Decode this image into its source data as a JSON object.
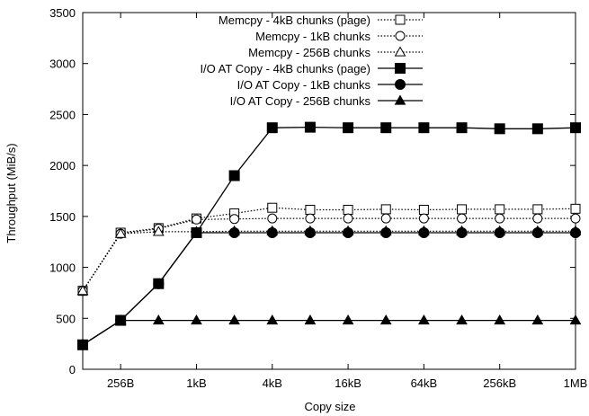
{
  "chart_data": {
    "type": "line",
    "title": "",
    "xlabel": "Copy size",
    "ylabel": "Throughput (MiB/s)",
    "x_scale": "log2",
    "x_unit": "bytes",
    "xlim": [
      128,
      1048576
    ],
    "ylim": [
      0,
      3500
    ],
    "grid": false,
    "legend_position": "top-right",
    "x_ticks": [
      {
        "value": 256,
        "label": "256B"
      },
      {
        "value": 1024,
        "label": "1kB"
      },
      {
        "value": 4096,
        "label": "4kB"
      },
      {
        "value": 16384,
        "label": "16kB"
      },
      {
        "value": 65536,
        "label": "64kB"
      },
      {
        "value": 262144,
        "label": "256kB"
      },
      {
        "value": 1048576,
        "label": "1MB"
      }
    ],
    "y_ticks": [
      0,
      500,
      1000,
      1500,
      2000,
      2500,
      3000,
      3500
    ],
    "x": [
      128,
      256,
      512,
      1024,
      2048,
      4096,
      8192,
      16384,
      32768,
      65536,
      131072,
      262144,
      524288,
      1048576
    ],
    "series": [
      {
        "name": "Memcpy - 4kB chunks (page)",
        "marker": "open-square",
        "line": "dotted",
        "values": [
          770,
          1340,
          1385,
          1480,
          1530,
          1585,
          1565,
          1565,
          1570,
          1565,
          1570,
          1570,
          1570,
          1575
        ]
      },
      {
        "name": "Memcpy - 1kB chunks",
        "marker": "open-circle",
        "line": "dotted",
        "values": [
          770,
          1330,
          1380,
          1470,
          1475,
          1480,
          1480,
          1480,
          1480,
          1480,
          1480,
          1480,
          1480,
          1480
        ]
      },
      {
        "name": "Memcpy - 256B chunks",
        "marker": "open-triangle",
        "line": "dotted",
        "values": [
          770,
          1330,
          1350,
          1350,
          1355,
          1355,
          1355,
          1355,
          1355,
          1355,
          1355,
          1355,
          1355,
          1355
        ]
      },
      {
        "name": "I/O AT Copy - 4kB chunks (page)",
        "marker": "filled-square",
        "line": "solid",
        "values": [
          240,
          480,
          840,
          1340,
          1900,
          2370,
          2375,
          2370,
          2370,
          2370,
          2370,
          2360,
          2360,
          2370
        ]
      },
      {
        "name": "I/O AT Copy - 1kB chunks",
        "marker": "filled-circle",
        "line": "solid",
        "values": [
          240,
          480,
          840,
          1340,
          1340,
          1340,
          1340,
          1340,
          1340,
          1340,
          1340,
          1340,
          1340,
          1340
        ]
      },
      {
        "name": "I/O AT Copy - 256B chunks",
        "marker": "filled-triangle",
        "line": "solid",
        "values": [
          240,
          480,
          480,
          480,
          480,
          480,
          480,
          480,
          480,
          480,
          480,
          480,
          480,
          480
        ]
      }
    ]
  }
}
